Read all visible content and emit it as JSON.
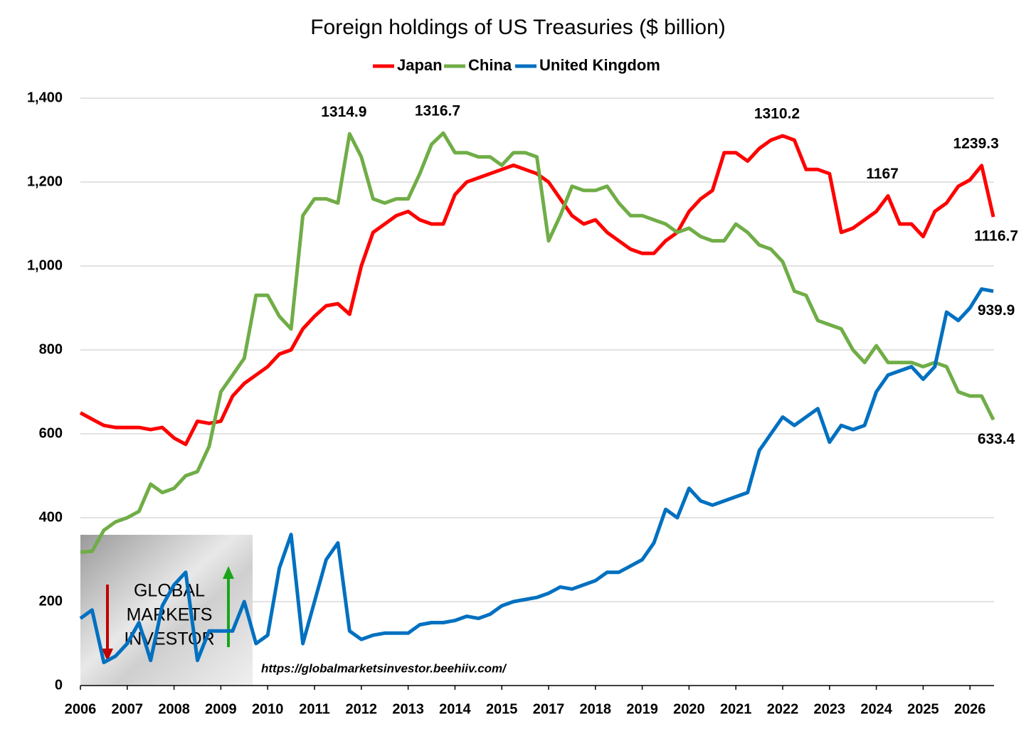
{
  "chart_data": {
    "type": "line",
    "title": "Foreign holdings of US Treasuries ($ billion)",
    "categories": [
      "2006",
      null,
      null,
      null,
      "2007",
      null,
      null,
      null,
      "2008",
      null,
      null,
      null,
      "2009",
      null,
      null,
      null,
      "2010",
      null,
      null,
      null,
      "2011",
      null,
      null,
      null,
      "2012",
      null,
      null,
      null,
      "2013",
      null,
      null,
      null,
      "2014",
      null,
      null,
      null,
      "2015",
      null,
      null,
      null,
      "2017",
      null,
      null,
      null,
      "2018",
      null,
      null,
      null,
      "2019",
      null,
      null,
      null,
      "2020",
      null,
      null,
      null,
      "2021",
      null,
      null,
      null,
      "2022",
      null,
      null,
      null,
      "2023",
      null,
      null,
      null,
      "2024",
      null,
      null,
      null,
      "2025",
      null,
      null,
      null,
      "2026",
      null,
      null
    ],
    "series": [
      {
        "name": "Japan",
        "color": "#ff0000",
        "values": [
          650,
          635,
          620,
          615,
          615,
          615,
          610,
          615,
          590,
          575,
          630,
          625,
          630,
          690,
          720,
          740,
          760,
          790,
          800,
          850,
          880,
          905,
          910,
          885,
          1000,
          1080,
          1100,
          1120,
          1130,
          1110,
          1100,
          1100,
          1170,
          1200,
          1210,
          1220,
          1230,
          1240,
          1230,
          1220,
          1200,
          1160,
          1120,
          1100,
          1110,
          1080,
          1060,
          1040,
          1030,
          1030,
          1060,
          1080,
          1130,
          1160,
          1180,
          1270,
          1270,
          1250,
          1280,
          1300,
          1310.2,
          1300,
          1230,
          1230,
          1220,
          1080,
          1090,
          1110,
          1130,
          1167,
          1100,
          1100,
          1070,
          1130,
          1150,
          1190,
          1205,
          1239.3,
          1116.7
        ],
        "value_labels": [
          null,
          null,
          null,
          null,
          null,
          null,
          null,
          null,
          null,
          null,
          null,
          null,
          null,
          null,
          null,
          null,
          null,
          null,
          null,
          null,
          null,
          null,
          null,
          null,
          null,
          null,
          null,
          null,
          null,
          null,
          null,
          null,
          null,
          null,
          null,
          null,
          null,
          null,
          null,
          null,
          null,
          null,
          null,
          null,
          null,
          null,
          null,
          null,
          null,
          null,
          null,
          null,
          null,
          null,
          null,
          null,
          null,
          null,
          null,
          null,
          "1310.2",
          null,
          null,
          null,
          null,
          null,
          null,
          null,
          null,
          "1167",
          null,
          null,
          null,
          null,
          null,
          null,
          null,
          "1239.3",
          "1116.7"
        ]
      },
      {
        "name": "China",
        "color": "#70ad47",
        "values": [
          318,
          320,
          370,
          390,
          400,
          415,
          480,
          460,
          470,
          500,
          510,
          570,
          700,
          740,
          780,
          930,
          930,
          880,
          850,
          1120,
          1160,
          1160,
          1150,
          1314.9,
          1260,
          1160,
          1150,
          1160,
          1160,
          1220,
          1290,
          1316.7,
          1270,
          1270,
          1260,
          1260,
          1240,
          1270,
          1270,
          1260,
          1060,
          1120,
          1190,
          1180,
          1180,
          1190,
          1150,
          1120,
          1120,
          1110,
          1100,
          1080,
          1090,
          1070,
          1060,
          1060,
          1100,
          1080,
          1050,
          1040,
          1010,
          940,
          930,
          870,
          860,
          850,
          800,
          770,
          810,
          770,
          770,
          770,
          760,
          770,
          760,
          700,
          690,
          690,
          633.4
        ],
        "value_labels": [
          null,
          null,
          null,
          null,
          null,
          null,
          null,
          null,
          null,
          null,
          null,
          null,
          null,
          null,
          null,
          null,
          null,
          null,
          null,
          null,
          null,
          null,
          null,
          "1314.9",
          null,
          null,
          null,
          null,
          null,
          null,
          null,
          "1316.7",
          null,
          null,
          null,
          null,
          null,
          null,
          null,
          null,
          null,
          null,
          null,
          null,
          null,
          null,
          null,
          null,
          null,
          null,
          null,
          null,
          null,
          null,
          null,
          null,
          null,
          null,
          null,
          null,
          null,
          null,
          null,
          null,
          null,
          null,
          null,
          null,
          null,
          null,
          null,
          null,
          null,
          null,
          null,
          null,
          null,
          null,
          "633.4"
        ]
      },
      {
        "name": "United Kingdom",
        "color": "#0070c0",
        "values": [
          160,
          180,
          55,
          70,
          100,
          150,
          60,
          190,
          240,
          270,
          60,
          130,
          130,
          130,
          200,
          100,
          120,
          280,
          360,
          100,
          200,
          300,
          340,
          130,
          110,
          120,
          125,
          125,
          125,
          145,
          150,
          150,
          155,
          165,
          160,
          170,
          190,
          200,
          205,
          210,
          220,
          235,
          230,
          240,
          250,
          270,
          270,
          285,
          300,
          340,
          420,
          400,
          470,
          440,
          430,
          440,
          450,
          460,
          560,
          600,
          640,
          620,
          640,
          660,
          580,
          620,
          610,
          620,
          700,
          740,
          750,
          760,
          730,
          760,
          890,
          870,
          900,
          945,
          939.9
        ],
        "value_labels": [
          null,
          null,
          null,
          null,
          null,
          null,
          null,
          null,
          null,
          null,
          null,
          null,
          null,
          null,
          null,
          null,
          null,
          null,
          null,
          null,
          null,
          null,
          null,
          null,
          null,
          null,
          null,
          null,
          null,
          null,
          null,
          null,
          null,
          null,
          null,
          null,
          null,
          null,
          null,
          null,
          null,
          null,
          null,
          null,
          null,
          null,
          null,
          null,
          null,
          null,
          null,
          null,
          null,
          null,
          null,
          null,
          null,
          null,
          null,
          null,
          null,
          null,
          null,
          null,
          null,
          null,
          null,
          null,
          null,
          null,
          null,
          null,
          null,
          null,
          null,
          null,
          null,
          null,
          "939.9"
        ]
      }
    ],
    "ylim": [
      0,
      1400
    ],
    "yticks": [
      0,
      200,
      400,
      600,
      800,
      {
        "value": 1000,
        "label": "1,000"
      },
      {
        "value": 1200,
        "label": "1,200"
      },
      {
        "value": 1400,
        "label": "1,400"
      }
    ],
    "grid": true,
    "legend": "top",
    "watermark": [
      "GLOBAL",
      "MARKETS",
      "INVESTOR"
    ],
    "source": "https://globalmarketsinvestor.beehiiv.com/"
  }
}
